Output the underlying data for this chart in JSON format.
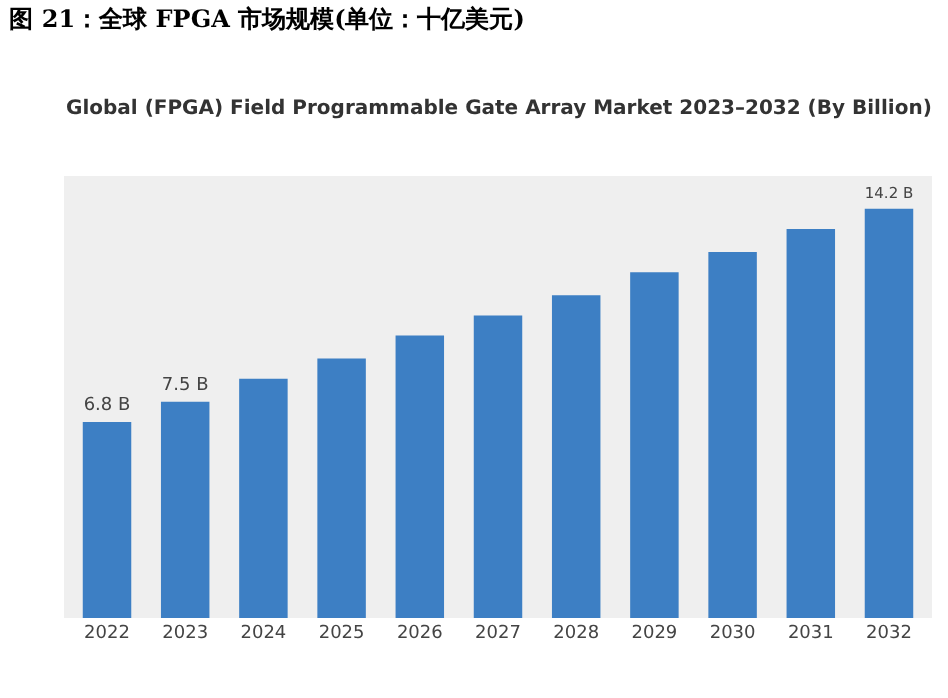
{
  "chart_data": {
    "type": "bar",
    "title": "图 21：全球 FPGA 市场规模(单位：十亿美元)",
    "subtitle": "Global (FPGA) Field Programmable Gate Array Market 2023–2032 (By Billion)",
    "categories": [
      "2022",
      "2023",
      "2024",
      "2025",
      "2026",
      "2027",
      "2028",
      "2029",
      "2030",
      "2031",
      "2032"
    ],
    "values": [
      6.8,
      7.5,
      8.3,
      9.0,
      9.8,
      10.5,
      11.2,
      12.0,
      12.7,
      13.5,
      14.2
    ],
    "value_labels": [
      "6.8 B",
      "7.5 B",
      null,
      null,
      null,
      null,
      null,
      null,
      null,
      null,
      "14.2 B"
    ],
    "color": "#3d7fc4",
    "grid": false,
    "legend": false
  }
}
